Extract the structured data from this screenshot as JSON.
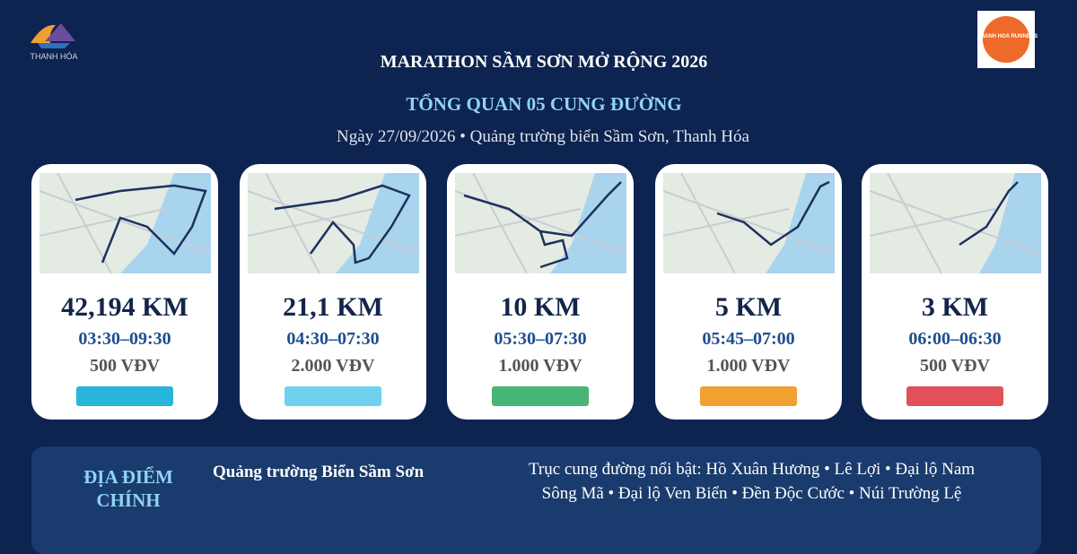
{
  "header": {
    "logo_left": "THANH HÓA",
    "logo_right": "THANH HOA RUNNERS",
    "title": "MARATHON SẦM SƠN MỞ RỘNG 2026",
    "subtitle": "TỔNG QUAN 05 CUNG ĐƯỜNG",
    "date_line": "Ngày 27/09/2026 • Quảng trường biển Sầm Sơn, Thanh Hóa"
  },
  "cards": [
    {
      "distance": "42,194 KM",
      "time": "03:30–09:30",
      "participants": "500 VĐV",
      "color": "#27b5d9"
    },
    {
      "distance": "21,1 KM",
      "time": "04:30–07:30",
      "participants": "2.000 VĐV",
      "color": "#6fd1ee"
    },
    {
      "distance": "10 KM",
      "time": "05:30–07:30",
      "participants": "1.000 VĐV",
      "color": "#47b574"
    },
    {
      "distance": "5 KM",
      "time": "05:45–07:00",
      "participants": "1.000 VĐV",
      "color": "#f2a031"
    },
    {
      "distance": "3 KM",
      "time": "06:00–06:30",
      "participants": "500 VĐV",
      "color": "#e4505a"
    }
  ],
  "footer": {
    "label": [
      "ĐỊA ĐIỂM",
      "CHÍNH"
    ],
    "venue": "Quảng trường Biển Sầm Sơn",
    "routes": [
      "Trục cung đường nổi bật: Hồ Xuân Hương • Lê Lợi • Đại lộ Nam",
      "Sông Mã • Đại lộ Ven Biển • Đền Độc Cước • Núi Trường Lệ"
    ]
  }
}
